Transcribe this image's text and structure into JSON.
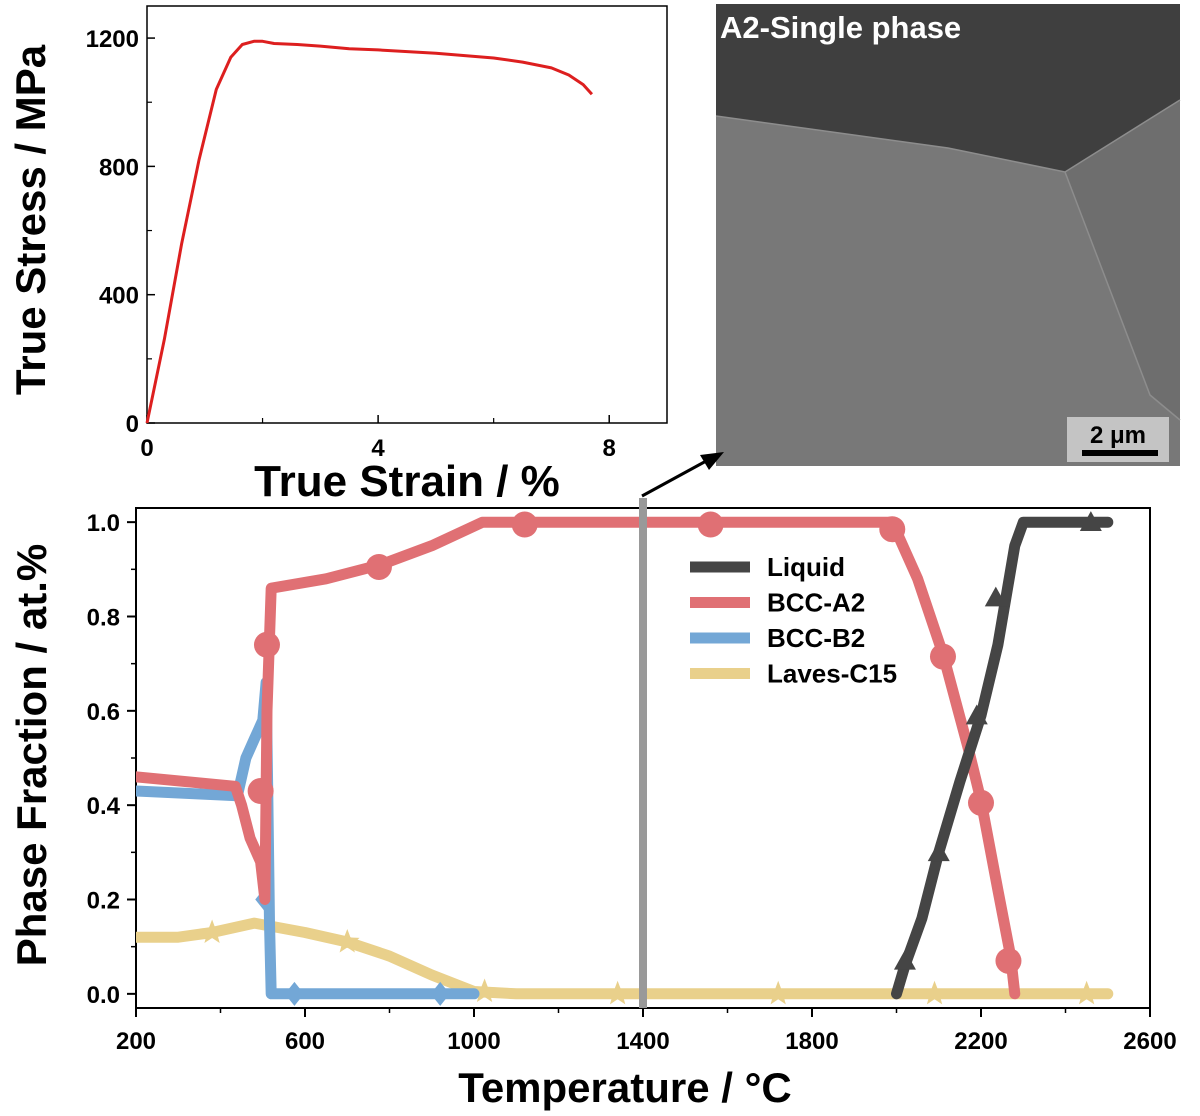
{
  "colors": {
    "stress_curve": "#dd1f1f",
    "liquid": "#454545",
    "bcc_a2": "#e07074",
    "bcc_b2": "#73a7d6",
    "laves_c15": "#e9d08b",
    "marker_line": "#999999"
  },
  "chart_data": [
    {
      "type": "line",
      "xlabel": "True Strain / %",
      "ylabel": "True Stress / MPa",
      "xlim": [
        0,
        9
      ],
      "ylim": [
        0,
        1300
      ],
      "x_ticks": [
        "0",
        "4",
        "8"
      ],
      "y_ticks": [
        "0",
        "400",
        "800",
        "1200"
      ],
      "grid": false,
      "series": [
        {
          "x": [
            0,
            0.3,
            0.6,
            0.9,
            1.2,
            1.45,
            1.65,
            1.85,
            2.0,
            2.2,
            2.6,
            3.0,
            3.5,
            4.0,
            5.0,
            6.0,
            6.5,
            7.0,
            7.3,
            7.55,
            7.7
          ],
          "y": [
            0,
            260,
            560,
            820,
            1040,
            1140,
            1180,
            1190,
            1190,
            1183,
            1180,
            1175,
            1167,
            1163,
            1153,
            1138,
            1125,
            1107,
            1085,
            1055,
            1025
          ]
        }
      ]
    },
    {
      "type": "line",
      "xlabel": "Temperature / °C",
      "ylabel": "Phase Fraction / at.%",
      "xlim": [
        200,
        2600
      ],
      "ylim": [
        -0.03,
        1.03
      ],
      "x_ticks": [
        "200",
        "600",
        "1000",
        "1400",
        "1800",
        "2200",
        "2600"
      ],
      "y_ticks": [
        "0.0",
        "0.2",
        "0.4",
        "0.6",
        "0.8",
        "1.0"
      ],
      "vertical_line_x": 1400,
      "legend_position": "right, upper-middle",
      "grid": false,
      "series": [
        {
          "name": "Liquid",
          "marker": "triangle",
          "x": [
            2000,
            2020,
            2060,
            2100,
            2150,
            2200,
            2240,
            2280,
            2300,
            2500
          ],
          "y": [
            0,
            0.06,
            0.16,
            0.3,
            0.45,
            0.59,
            0.74,
            0.95,
            1.0,
            1.0
          ],
          "markers": [
            [
              2020,
              0.07
            ],
            [
              2100,
              0.3
            ],
            [
              2190,
              0.59
            ],
            [
              2235,
              0.84
            ],
            [
              2460,
              1.0
            ]
          ]
        },
        {
          "name": "BCC-A2",
          "marker": "circle",
          "x": [
            200,
            435,
            450,
            470,
            495,
            505,
            510,
            520,
            650,
            780,
            900,
            1020,
            1120,
            1560,
            1990,
            2000,
            2050,
            2110,
            2170,
            2200,
            2240,
            2270,
            2280
          ],
          "y": [
            0.46,
            0.44,
            0.4,
            0.33,
            0.28,
            0.2,
            0.6,
            0.86,
            0.88,
            0.91,
            0.95,
            1.0,
            1.0,
            1.0,
            1.0,
            0.98,
            0.88,
            0.72,
            0.52,
            0.41,
            0.22,
            0.08,
            0.0
          ],
          "markers": [
            [
              495,
              0.43
            ],
            [
              510,
              0.74
            ],
            [
              775,
              0.905
            ],
            [
              1120,
              0.995
            ],
            [
              1560,
              0.995
            ],
            [
              1990,
              0.985
            ],
            [
              2110,
              0.715
            ],
            [
              2200,
              0.405
            ],
            [
              2265,
              0.07
            ]
          ]
        },
        {
          "name": "BCC-B2",
          "marker": "diamond",
          "x": [
            200,
            440,
            460,
            480,
            500,
            508,
            512,
            516,
            520,
            560,
            700,
            900,
            1000
          ],
          "y": [
            0.43,
            0.42,
            0.5,
            0.54,
            0.58,
            0.66,
            0.42,
            0.15,
            0.0,
            0.0,
            0.0,
            0.0,
            0.0
          ],
          "markers": [
            [
              505,
              0.2
            ],
            [
              575,
              0.0
            ],
            [
              920,
              0.0
            ]
          ]
        },
        {
          "name": "Laves-C15",
          "marker": "star",
          "x": [
            200,
            300,
            380,
            480,
            600,
            700,
            800,
            900,
            1000,
            1100,
            1400,
            2000,
            2500
          ],
          "y": [
            0.12,
            0.12,
            0.13,
            0.15,
            0.13,
            0.11,
            0.08,
            0.04,
            0.005,
            0.0,
            0.0,
            0.0,
            0.0
          ],
          "markers": [
            [
              380,
              0.13
            ],
            [
              700,
              0.11
            ],
            [
              1025,
              0.005
            ],
            [
              1340,
              0.0
            ],
            [
              1720,
              0.0
            ],
            [
              2090,
              0.0
            ],
            [
              2450,
              0.0
            ]
          ]
        }
      ]
    }
  ],
  "micrograph": {
    "title": "A2-Single phase",
    "scale_bar_label": "2 μm"
  }
}
